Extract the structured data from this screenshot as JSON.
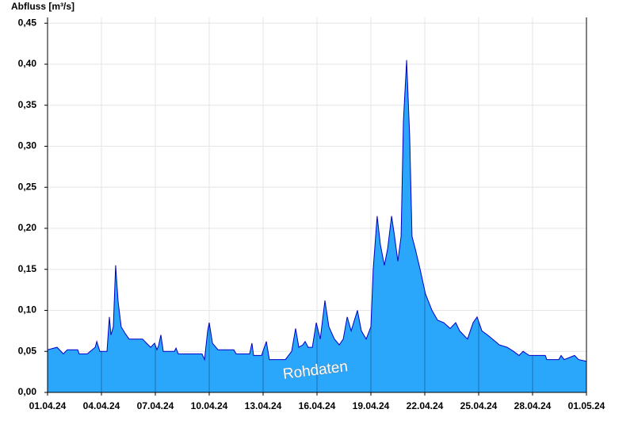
{
  "chart_data": {
    "type": "area",
    "y_label": "Abfluss [m³/s]",
    "x": [
      0,
      0.53,
      0.88,
      1.1,
      1.68,
      1.76,
      2.21,
      2.65,
      2.74,
      2.91,
      3.31,
      3.44,
      3.53,
      3.66,
      3.79,
      3.93,
      4.1,
      4.32,
      4.54,
      5.29,
      5.51,
      5.74,
      5.96,
      6.09,
      6.18,
      6.31,
      6.44,
      7.06,
      7.15,
      7.28,
      8.6,
      8.74,
      8.91,
      9.0,
      9.18,
      9.49,
      10.37,
      10.5,
      11.25,
      11.38,
      11.47,
      11.91,
      12.18,
      12.35,
      13.24,
      13.59,
      13.81,
      13.99,
      14.21,
      14.34,
      14.51,
      14.74,
      14.96,
      15.18,
      15.44,
      15.66,
      15.97,
      16.24,
      16.46,
      16.68,
      16.9,
      17.25,
      17.47,
      17.74,
      18.0,
      18.13,
      18.35,
      18.53,
      18.75,
      18.93,
      19.15,
      19.32,
      19.5,
      19.68,
      19.81,
      19.99,
      20.16,
      20.29,
      20.47,
      20.74,
      21.04,
      21.4,
      21.71,
      22.06,
      22.41,
      22.72,
      22.94,
      23.38,
      23.69,
      23.91,
      24.18,
      24.49,
      24.93,
      25.15,
      25.59,
      25.94,
      26.25,
      26.47,
      26.82,
      27.71,
      27.79,
      28.46,
      28.59,
      28.76,
      29.34,
      29.56,
      30
    ],
    "series": [
      {
        "name": "Rohdaten",
        "color": "#2aa6fb",
        "line_color": "#0000c8",
        "values": [
          0.052,
          0.055,
          0.047,
          0.052,
          0.052,
          0.047,
          0.047,
          0.055,
          0.062,
          0.05,
          0.05,
          0.092,
          0.07,
          0.08,
          0.155,
          0.11,
          0.08,
          0.072,
          0.065,
          0.065,
          0.06,
          0.055,
          0.06,
          0.052,
          0.057,
          0.07,
          0.05,
          0.05,
          0.054,
          0.047,
          0.047,
          0.04,
          0.075,
          0.085,
          0.06,
          0.052,
          0.052,
          0.047,
          0.047,
          0.06,
          0.045,
          0.045,
          0.062,
          0.04,
          0.04,
          0.05,
          0.078,
          0.055,
          0.058,
          0.062,
          0.055,
          0.055,
          0.085,
          0.065,
          0.112,
          0.08,
          0.065,
          0.058,
          0.065,
          0.092,
          0.075,
          0.1,
          0.075,
          0.065,
          0.08,
          0.15,
          0.215,
          0.18,
          0.155,
          0.175,
          0.215,
          0.19,
          0.16,
          0.19,
          0.33,
          0.405,
          0.31,
          0.19,
          0.175,
          0.15,
          0.12,
          0.1,
          0.088,
          0.085,
          0.078,
          0.085,
          0.075,
          0.065,
          0.085,
          0.092,
          0.075,
          0.07,
          0.062,
          0.058,
          0.055,
          0.05,
          0.045,
          0.05,
          0.045,
          0.045,
          0.04,
          0.04,
          0.045,
          0.04,
          0.045,
          0.04,
          0.038
        ]
      }
    ],
    "xlim": [
      0,
      30
    ],
    "xticks": [
      {
        "value": 0,
        "label": "01.04.24"
      },
      {
        "value": 3,
        "label": "04.04.24"
      },
      {
        "value": 6,
        "label": "07.04.24"
      },
      {
        "value": 9,
        "label": "10.04.24"
      },
      {
        "value": 12,
        "label": "13.04.24"
      },
      {
        "value": 15,
        "label": "16.04.24"
      },
      {
        "value": 18,
        "label": "19.04.24"
      },
      {
        "value": 21,
        "label": "22.04.24"
      },
      {
        "value": 24,
        "label": "25.04.24"
      },
      {
        "value": 27,
        "label": "28.04.24"
      },
      {
        "value": 30,
        "label": "01.05.24"
      }
    ],
    "ylim": [
      0,
      0.457
    ],
    "yticks": [
      {
        "value": 0,
        "label": "0,00"
      },
      {
        "value": 0.05,
        "label": "0,05"
      },
      {
        "value": 0.1,
        "label": "0,10"
      },
      {
        "value": 0.15,
        "label": "0,15"
      },
      {
        "value": 0.2,
        "label": "0,20"
      },
      {
        "value": 0.25,
        "label": "0,25"
      },
      {
        "value": 0.3,
        "label": "0,30"
      },
      {
        "value": 0.35,
        "label": "0,35"
      },
      {
        "value": 0.4,
        "label": "0,40"
      },
      {
        "value": 0.45,
        "label": "0,45"
      }
    ],
    "grid": true
  }
}
